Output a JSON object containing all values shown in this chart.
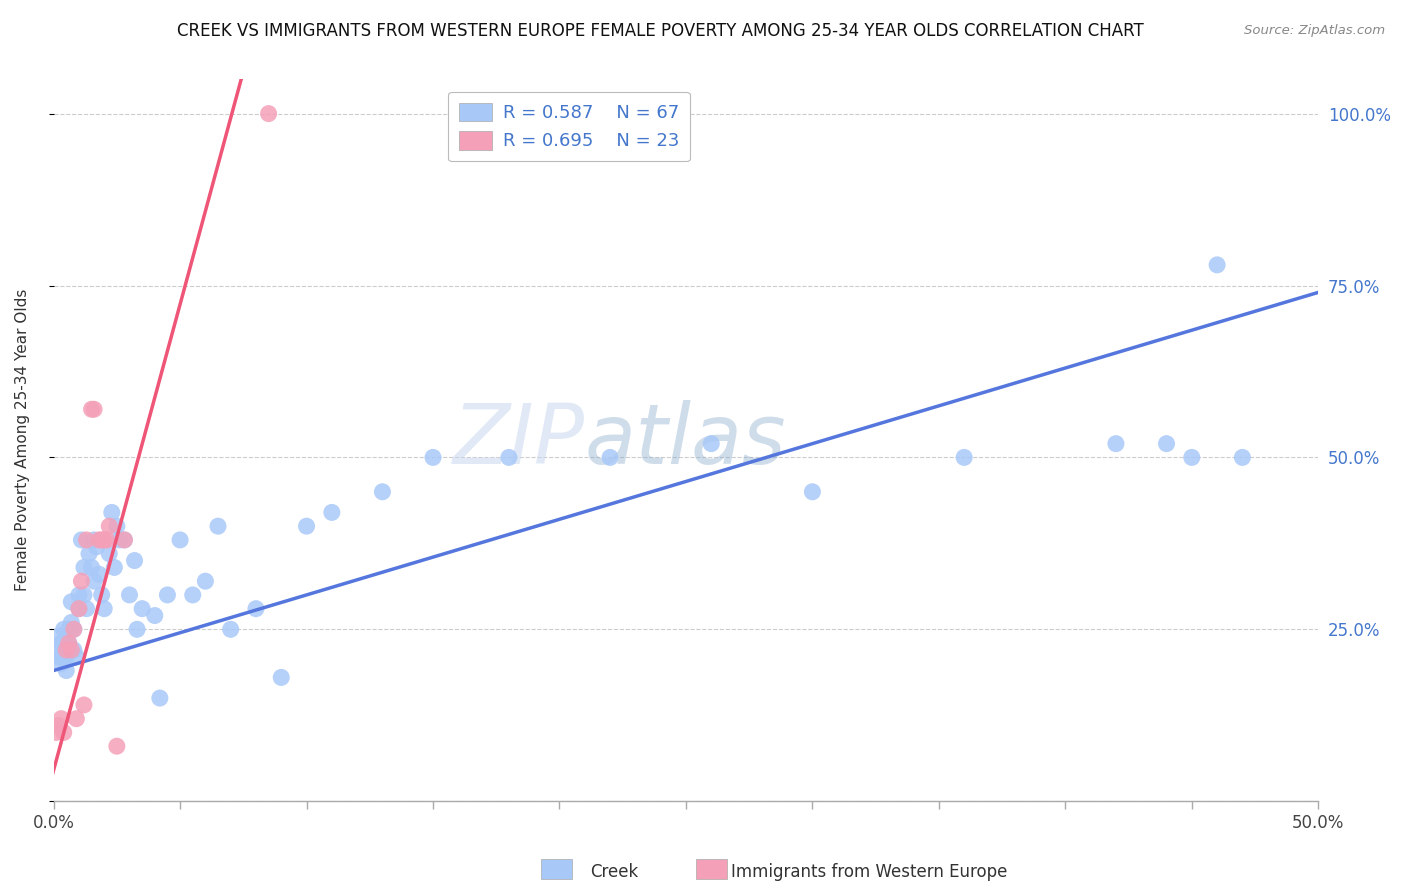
{
  "title": "CREEK VS IMMIGRANTS FROM WESTERN EUROPE FEMALE POVERTY AMONG 25-34 YEAR OLDS CORRELATION CHART",
  "source": "Source: ZipAtlas.com",
  "ylabel": "Female Poverty Among 25-34 Year Olds",
  "xlim": [
    0.0,
    0.5
  ],
  "ylim": [
    0.0,
    1.05
  ],
  "xtick_positions": [
    0.0,
    0.05,
    0.1,
    0.15,
    0.2,
    0.25,
    0.3,
    0.35,
    0.4,
    0.45,
    0.5
  ],
  "xtick_labels": [
    "0.0%",
    "",
    "",
    "",
    "",
    "",
    "",
    "",
    "",
    "",
    "50.0%"
  ],
  "ytick_positions": [
    0.0,
    0.25,
    0.5,
    0.75,
    1.0
  ],
  "ytick_right_labels": [
    "",
    "25.0%",
    "50.0%",
    "75.0%",
    "100.0%"
  ],
  "creek_color": "#a8c8f8",
  "imm_color": "#f4a0b8",
  "creek_line_color": "#5577dd",
  "imm_line_color": "#ee5577",
  "watermark_color": "#c8d8ee",
  "legend_label_color": "#4477cc",
  "right_tick_color": "#4477cc",
  "creek_x": [
    0.001,
    0.002,
    0.002,
    0.003,
    0.003,
    0.004,
    0.004,
    0.004,
    0.005,
    0.005,
    0.005,
    0.006,
    0.006,
    0.006,
    0.007,
    0.007,
    0.008,
    0.008,
    0.009,
    0.01,
    0.01,
    0.011,
    0.012,
    0.012,
    0.013,
    0.014,
    0.015,
    0.016,
    0.016,
    0.017,
    0.018,
    0.019,
    0.02,
    0.022,
    0.023,
    0.024,
    0.025,
    0.026,
    0.028,
    0.03,
    0.032,
    0.033,
    0.035,
    0.04,
    0.042,
    0.045,
    0.05,
    0.055,
    0.06,
    0.065,
    0.07,
    0.08,
    0.09,
    0.1,
    0.11,
    0.13,
    0.15,
    0.18,
    0.22,
    0.26,
    0.3,
    0.36,
    0.42,
    0.44,
    0.45,
    0.46,
    0.47
  ],
  "creek_y": [
    0.22,
    0.24,
    0.21,
    0.23,
    0.2,
    0.21,
    0.25,
    0.23,
    0.19,
    0.24,
    0.21,
    0.22,
    0.25,
    0.23,
    0.29,
    0.26,
    0.25,
    0.22,
    0.21,
    0.3,
    0.28,
    0.38,
    0.34,
    0.3,
    0.28,
    0.36,
    0.34,
    0.32,
    0.38,
    0.37,
    0.33,
    0.3,
    0.28,
    0.36,
    0.42,
    0.34,
    0.4,
    0.38,
    0.38,
    0.3,
    0.35,
    0.25,
    0.28,
    0.27,
    0.15,
    0.3,
    0.38,
    0.3,
    0.32,
    0.4,
    0.25,
    0.28,
    0.18,
    0.4,
    0.42,
    0.45,
    0.5,
    0.5,
    0.5,
    0.52,
    0.45,
    0.5,
    0.52,
    0.52,
    0.5,
    0.78,
    0.5
  ],
  "imm_x": [
    0.001,
    0.002,
    0.003,
    0.004,
    0.005,
    0.006,
    0.007,
    0.008,
    0.009,
    0.01,
    0.011,
    0.012,
    0.013,
    0.015,
    0.016,
    0.018,
    0.019,
    0.02,
    0.021,
    0.022,
    0.025,
    0.028,
    0.085
  ],
  "imm_y": [
    0.1,
    0.11,
    0.12,
    0.1,
    0.22,
    0.23,
    0.22,
    0.25,
    0.12,
    0.28,
    0.32,
    0.14,
    0.38,
    0.57,
    0.57,
    0.38,
    0.38,
    0.38,
    0.38,
    0.4,
    0.08,
    0.38,
    1.0
  ],
  "creek_line_x": [
    0.0,
    0.5
  ],
  "creek_line_y_intercept": 0.19,
  "creek_line_slope": 1.1,
  "imm_line_x_start": -0.01,
  "imm_line_x_end": 0.095,
  "imm_line_y_intercept": 0.04,
  "imm_line_slope": 12.0
}
